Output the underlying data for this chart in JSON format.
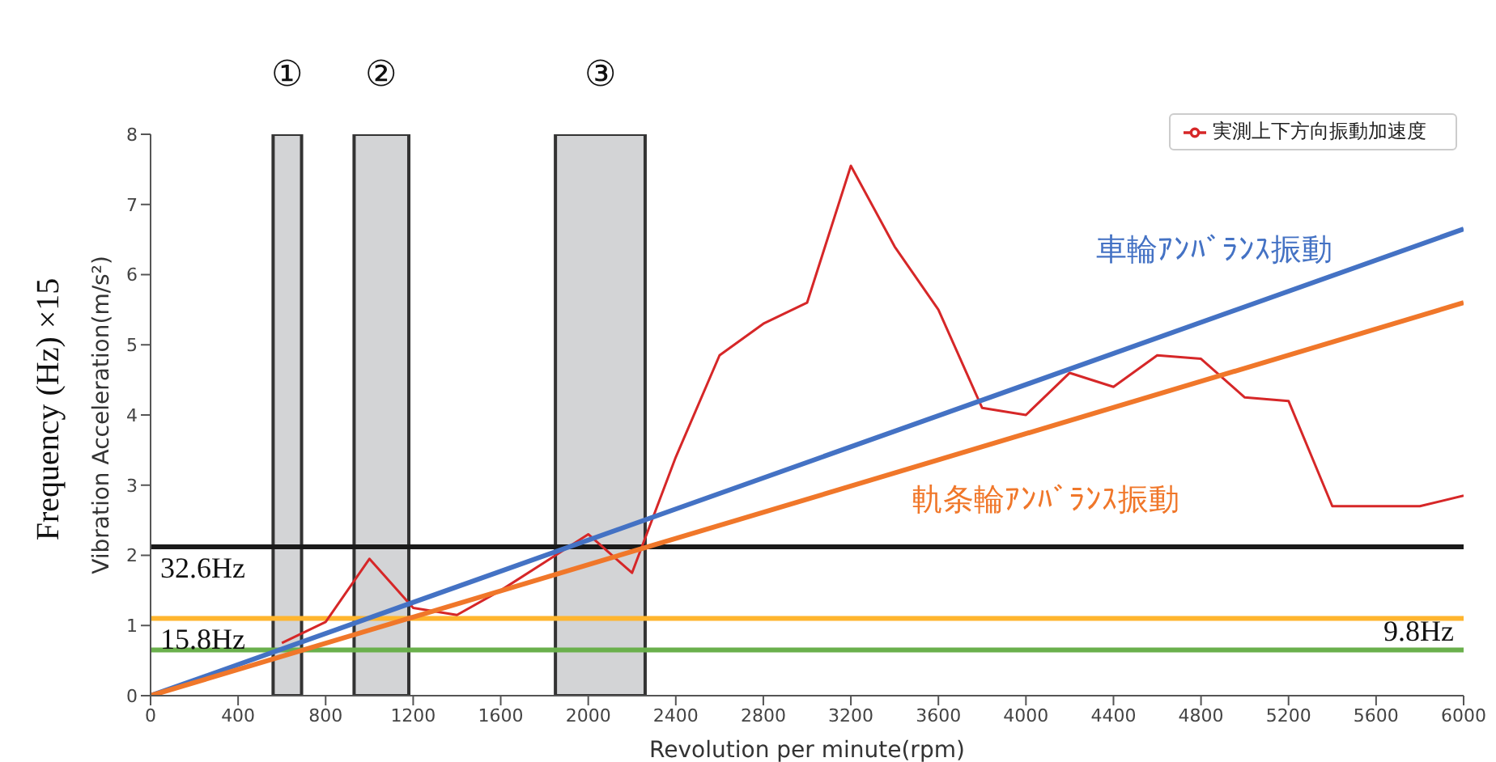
{
  "chart_data": {
    "type": "line",
    "xlabel": "Revolution per minute(rpm)",
    "ylabel": "Vibration Acceleration(m/s²)",
    "y2label": "Frequency (Hz) ×15",
    "xlim": [
      0,
      6000
    ],
    "xticks": [
      0,
      400,
      800,
      1200,
      1600,
      2000,
      2400,
      2800,
      3200,
      3600,
      4000,
      4400,
      4800,
      5200,
      5600,
      6000
    ],
    "ylim": [
      0,
      8
    ],
    "yticks": [
      0,
      1,
      2,
      3,
      4,
      5,
      6,
      7,
      8
    ],
    "series": [
      {
        "name": "実測上下方向振動加速度",
        "color": "#d62728",
        "x": [
          600,
          800,
          1000,
          1200,
          1400,
          1600,
          1800,
          2000,
          2200,
          2400,
          2600,
          2800,
          3000,
          3200,
          3400,
          3600,
          3800,
          4000,
          4200,
          4400,
          4600,
          4800,
          5000,
          5200,
          5400,
          5600,
          5800,
          6000
        ],
        "values": [
          0.75,
          1.05,
          1.95,
          1.25,
          1.15,
          1.5,
          1.9,
          2.3,
          1.75,
          3.4,
          4.85,
          5.3,
          5.6,
          7.55,
          6.4,
          5.5,
          4.1,
          4.0,
          4.6,
          4.4,
          4.85,
          4.8,
          4.25,
          4.2,
          2.7,
          2.7,
          2.7,
          2.85
        ]
      },
      {
        "name": "車輪ｱﾝﾊﾞﾗﾝｽ振動",
        "color": "#4472c4",
        "x": [
          0,
          6000
        ],
        "values": [
          0,
          6.65
        ]
      },
      {
        "name": "軌条輪ｱﾝﾊﾞﾗﾝｽ振動",
        "color": "#f0772a",
        "x": [
          0,
          6000
        ],
        "values": [
          0,
          5.6
        ]
      }
    ],
    "ref_lines": [
      {
        "axis": "y",
        "value": 2.12,
        "label": "32.6Hz",
        "color": "#1a1a1a"
      },
      {
        "axis": "y",
        "value": 1.1,
        "label": "15.8Hz",
        "color": "#ffb52e"
      },
      {
        "axis": "y",
        "value": 0.65,
        "label": "9.8Hz",
        "color": "#6ab04c"
      }
    ],
    "bands": [
      {
        "axis": "x",
        "from": 560,
        "to": 690,
        "label": "①",
        "color": "#d3d4d6"
      },
      {
        "axis": "x",
        "from": 930,
        "to": 1180,
        "label": "②",
        "color": "#d3d4d6"
      },
      {
        "axis": "x",
        "from": 1850,
        "to": 2260,
        "label": "③",
        "color": "#d3d4d6"
      }
    ],
    "legend": "top right",
    "grid": false,
    "marker": "none",
    "line_style": "solid"
  }
}
